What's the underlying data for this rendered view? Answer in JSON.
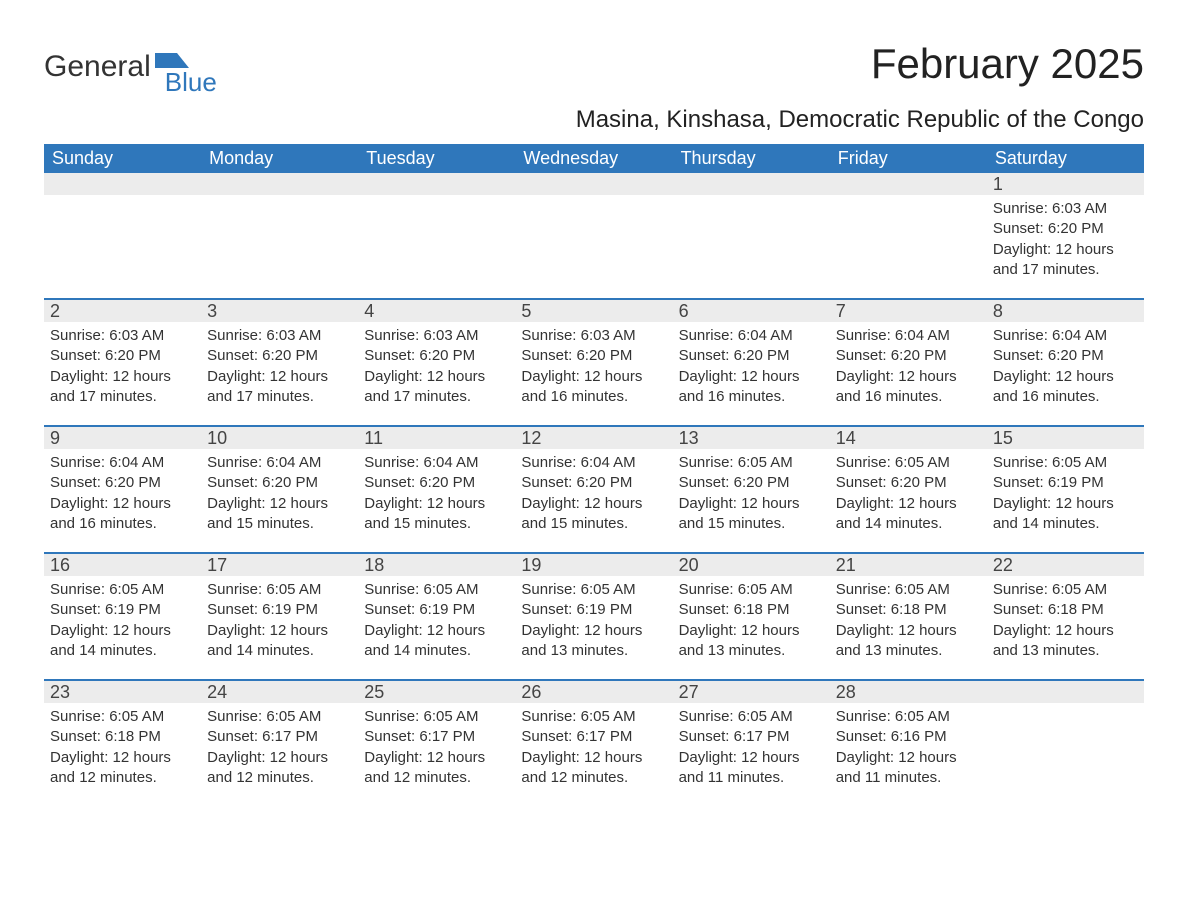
{
  "brand": {
    "part1": "General",
    "part2": "Blue",
    "accent_color": "#2f77bb"
  },
  "title": "February 2025",
  "location": "Masina, Kinshasa, Democratic Republic of the Congo",
  "colors": {
    "header_bg": "#2f77bb",
    "header_text": "#ffffff",
    "date_bar_bg": "#ececec",
    "body_text": "#333333",
    "page_bg": "#ffffff"
  },
  "day_names": [
    "Sunday",
    "Monday",
    "Tuesday",
    "Wednesday",
    "Thursday",
    "Friday",
    "Saturday"
  ],
  "weeks": [
    [
      {
        "date": "",
        "sunrise": "",
        "sunset": "",
        "daylight": ""
      },
      {
        "date": "",
        "sunrise": "",
        "sunset": "",
        "daylight": ""
      },
      {
        "date": "",
        "sunrise": "",
        "sunset": "",
        "daylight": ""
      },
      {
        "date": "",
        "sunrise": "",
        "sunset": "",
        "daylight": ""
      },
      {
        "date": "",
        "sunrise": "",
        "sunset": "",
        "daylight": ""
      },
      {
        "date": "",
        "sunrise": "",
        "sunset": "",
        "daylight": ""
      },
      {
        "date": "1",
        "sunrise": "Sunrise: 6:03 AM",
        "sunset": "Sunset: 6:20 PM",
        "daylight": "Daylight: 12 hours and 17 minutes."
      }
    ],
    [
      {
        "date": "2",
        "sunrise": "Sunrise: 6:03 AM",
        "sunset": "Sunset: 6:20 PM",
        "daylight": "Daylight: 12 hours and 17 minutes."
      },
      {
        "date": "3",
        "sunrise": "Sunrise: 6:03 AM",
        "sunset": "Sunset: 6:20 PM",
        "daylight": "Daylight: 12 hours and 17 minutes."
      },
      {
        "date": "4",
        "sunrise": "Sunrise: 6:03 AM",
        "sunset": "Sunset: 6:20 PM",
        "daylight": "Daylight: 12 hours and 17 minutes."
      },
      {
        "date": "5",
        "sunrise": "Sunrise: 6:03 AM",
        "sunset": "Sunset: 6:20 PM",
        "daylight": "Daylight: 12 hours and 16 minutes."
      },
      {
        "date": "6",
        "sunrise": "Sunrise: 6:04 AM",
        "sunset": "Sunset: 6:20 PM",
        "daylight": "Daylight: 12 hours and 16 minutes."
      },
      {
        "date": "7",
        "sunrise": "Sunrise: 6:04 AM",
        "sunset": "Sunset: 6:20 PM",
        "daylight": "Daylight: 12 hours and 16 minutes."
      },
      {
        "date": "8",
        "sunrise": "Sunrise: 6:04 AM",
        "sunset": "Sunset: 6:20 PM",
        "daylight": "Daylight: 12 hours and 16 minutes."
      }
    ],
    [
      {
        "date": "9",
        "sunrise": "Sunrise: 6:04 AM",
        "sunset": "Sunset: 6:20 PM",
        "daylight": "Daylight: 12 hours and 16 minutes."
      },
      {
        "date": "10",
        "sunrise": "Sunrise: 6:04 AM",
        "sunset": "Sunset: 6:20 PM",
        "daylight": "Daylight: 12 hours and 15 minutes."
      },
      {
        "date": "11",
        "sunrise": "Sunrise: 6:04 AM",
        "sunset": "Sunset: 6:20 PM",
        "daylight": "Daylight: 12 hours and 15 minutes."
      },
      {
        "date": "12",
        "sunrise": "Sunrise: 6:04 AM",
        "sunset": "Sunset: 6:20 PM",
        "daylight": "Daylight: 12 hours and 15 minutes."
      },
      {
        "date": "13",
        "sunrise": "Sunrise: 6:05 AM",
        "sunset": "Sunset: 6:20 PM",
        "daylight": "Daylight: 12 hours and 15 minutes."
      },
      {
        "date": "14",
        "sunrise": "Sunrise: 6:05 AM",
        "sunset": "Sunset: 6:20 PM",
        "daylight": "Daylight: 12 hours and 14 minutes."
      },
      {
        "date": "15",
        "sunrise": "Sunrise: 6:05 AM",
        "sunset": "Sunset: 6:19 PM",
        "daylight": "Daylight: 12 hours and 14 minutes."
      }
    ],
    [
      {
        "date": "16",
        "sunrise": "Sunrise: 6:05 AM",
        "sunset": "Sunset: 6:19 PM",
        "daylight": "Daylight: 12 hours and 14 minutes."
      },
      {
        "date": "17",
        "sunrise": "Sunrise: 6:05 AM",
        "sunset": "Sunset: 6:19 PM",
        "daylight": "Daylight: 12 hours and 14 minutes."
      },
      {
        "date": "18",
        "sunrise": "Sunrise: 6:05 AM",
        "sunset": "Sunset: 6:19 PM",
        "daylight": "Daylight: 12 hours and 14 minutes."
      },
      {
        "date": "19",
        "sunrise": "Sunrise: 6:05 AM",
        "sunset": "Sunset: 6:19 PM",
        "daylight": "Daylight: 12 hours and 13 minutes."
      },
      {
        "date": "20",
        "sunrise": "Sunrise: 6:05 AM",
        "sunset": "Sunset: 6:18 PM",
        "daylight": "Daylight: 12 hours and 13 minutes."
      },
      {
        "date": "21",
        "sunrise": "Sunrise: 6:05 AM",
        "sunset": "Sunset: 6:18 PM",
        "daylight": "Daylight: 12 hours and 13 minutes."
      },
      {
        "date": "22",
        "sunrise": "Sunrise: 6:05 AM",
        "sunset": "Sunset: 6:18 PM",
        "daylight": "Daylight: 12 hours and 13 minutes."
      }
    ],
    [
      {
        "date": "23",
        "sunrise": "Sunrise: 6:05 AM",
        "sunset": "Sunset: 6:18 PM",
        "daylight": "Daylight: 12 hours and 12 minutes."
      },
      {
        "date": "24",
        "sunrise": "Sunrise: 6:05 AM",
        "sunset": "Sunset: 6:17 PM",
        "daylight": "Daylight: 12 hours and 12 minutes."
      },
      {
        "date": "25",
        "sunrise": "Sunrise: 6:05 AM",
        "sunset": "Sunset: 6:17 PM",
        "daylight": "Daylight: 12 hours and 12 minutes."
      },
      {
        "date": "26",
        "sunrise": "Sunrise: 6:05 AM",
        "sunset": "Sunset: 6:17 PM",
        "daylight": "Daylight: 12 hours and 12 minutes."
      },
      {
        "date": "27",
        "sunrise": "Sunrise: 6:05 AM",
        "sunset": "Sunset: 6:17 PM",
        "daylight": "Daylight: 12 hours and 11 minutes."
      },
      {
        "date": "28",
        "sunrise": "Sunrise: 6:05 AM",
        "sunset": "Sunset: 6:16 PM",
        "daylight": "Daylight: 12 hours and 11 minutes."
      },
      {
        "date": "",
        "sunrise": "",
        "sunset": "",
        "daylight": ""
      }
    ]
  ]
}
